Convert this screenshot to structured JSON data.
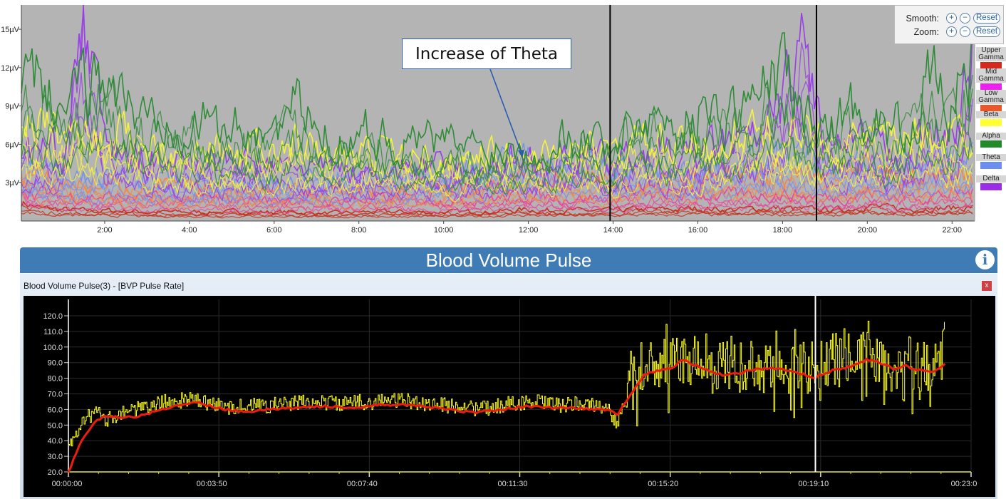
{
  "eeg_controls": {
    "smooth_label": "Smooth:",
    "zoom_label": "Zoom:",
    "plus": "+",
    "minus": "−",
    "reset": "Reset"
  },
  "annotation": {
    "text": "Increase of Theta"
  },
  "bvp_panel": {
    "header": "Blood Volume Pulse",
    "window_title": "Blood Volume Pulse(3) - [BVP Pulse Rate]",
    "close_label": "x",
    "info_icon": "info-icon"
  },
  "chart_data": [
    {
      "type": "line",
      "title": "",
      "background": "#b4b4b4",
      "y_ticks": [
        "3µV",
        "6µV",
        "9µV",
        "12µV",
        "15µV"
      ],
      "y_tick_values": [
        3,
        6,
        9,
        12,
        15
      ],
      "ylim": [
        0,
        16.9
      ],
      "x_ticks": [
        "2:00",
        "4:00",
        "6:00",
        "8:00",
        "10:00",
        "12:00",
        "14:00",
        "16:00",
        "18:00",
        "20:00",
        "22:00"
      ],
      "x_tick_values": [
        2,
        4,
        6,
        8,
        10,
        12,
        14,
        16,
        18,
        20,
        22
      ],
      "xlim": [
        0,
        22.5
      ],
      "x_unit": "minutes",
      "markers_min": [
        13.93,
        18.8
      ],
      "x": [
        0,
        0.5,
        1,
        1.5,
        2,
        2.5,
        3,
        3.5,
        4,
        4.5,
        5,
        5.5,
        6,
        6.5,
        7,
        7.5,
        8,
        8.5,
        9,
        9.5,
        10,
        10.5,
        11,
        11.5,
        12,
        12.5,
        13,
        13.5,
        14,
        14.5,
        15,
        15.5,
        16,
        16.5,
        17,
        17.5,
        18,
        18.5,
        19,
        19.5,
        20,
        20.5,
        21,
        21.5,
        22,
        22.5
      ],
      "legend": [
        {
          "name": "Upper Gamma",
          "color": "#d42a1e",
          "line": "#c8301e"
        },
        {
          "name": "Mid Gamma",
          "color": "#ee20ee",
          "line": "#e8489a"
        },
        {
          "name": "Low Gamma",
          "color": "#e8582a",
          "line": "#f0884a"
        },
        {
          "name": "Beta",
          "color": "#ffff33",
          "line": "#f4f43a"
        },
        {
          "name": "Alpha",
          "color": "#238a2a",
          "line": "#2e8b36"
        },
        {
          "name": "Theta",
          "color": "#6b8ef0",
          "line": "#7890ec"
        },
        {
          "name": "Delta",
          "color": "#9a2ee8",
          "line": "#9a3ee6"
        }
      ],
      "series": [
        {
          "name": "Upper Gamma",
          "values": [
            1.5,
            1,
            0.9,
            0.8,
            0.8,
            0.8,
            0.7,
            0.7,
            0.7,
            0.7,
            0.7,
            0.7,
            0.7,
            0.7,
            0.6,
            0.6,
            0.7,
            0.7,
            0.7,
            0.7,
            0.7,
            0.7,
            0.7,
            0.8,
            0.9,
            0.8,
            0.8,
            0.8,
            0.8,
            0.9,
            0.9,
            0.9,
            1,
            0.9,
            0.9,
            1,
            1,
            0.9,
            0.9,
            0.9,
            1.2,
            1,
            0.9,
            1,
            1,
            1.1
          ]
        },
        {
          "name": "Mid Gamma",
          "values": [
            2.8,
            2.2,
            2,
            1.9,
            1.9,
            1.8,
            1.8,
            1.7,
            1.7,
            1.7,
            1.7,
            1.7,
            1.6,
            1.7,
            1.6,
            1.6,
            1.7,
            1.7,
            1.7,
            1.7,
            1.7,
            1.7,
            1.8,
            1.8,
            2,
            1.9,
            1.8,
            1.8,
            1.8,
            1.9,
            2,
            2,
            2.1,
            2,
            2,
            2.1,
            2.1,
            2,
            1.9,
            1.9,
            2.3,
            2,
            1.9,
            2,
            2.1,
            2.2
          ]
        },
        {
          "name": "Low Gamma",
          "values": [
            4,
            3.2,
            3,
            2.8,
            2.8,
            2.7,
            2.6,
            2.6,
            2.5,
            2.5,
            2.5,
            2.5,
            2.4,
            2.5,
            2.4,
            2.4,
            2.5,
            2.5,
            2.5,
            2.6,
            2.6,
            2.7,
            2.8,
            3,
            3.5,
            3.2,
            3.2,
            3,
            3,
            3.2,
            3.5,
            3.5,
            3.8,
            3.5,
            3.5,
            3.8,
            3.6,
            3.5,
            3.3,
            3.2,
            3.8,
            3.5,
            3.2,
            3.5,
            3.6,
            3.8
          ]
        },
        {
          "name": "Theta",
          "values": [
            4,
            3.8,
            3.6,
            3.5,
            3.5,
            3.4,
            3.3,
            3.3,
            3.2,
            3.2,
            3.1,
            3.2,
            3.1,
            3.2,
            3.1,
            3.2,
            3.3,
            3.4,
            3.5,
            3.6,
            3.8,
            4,
            4.2,
            4.5,
            5,
            4.8,
            4.5,
            4.2,
            4,
            4,
            4.2,
            4,
            4.2,
            4.5,
            4.5,
            4.8,
            5,
            5,
            4.5,
            4.2,
            4.2,
            4.5,
            4.5,
            5,
            4.8,
            5
          ]
        },
        {
          "name": "Delta",
          "values": [
            5,
            6,
            5,
            16,
            6,
            5,
            5,
            4.5,
            4.5,
            5,
            4.5,
            4.5,
            4,
            4.5,
            4,
            4,
            4,
            4,
            4,
            4.5,
            4,
            4,
            4,
            4.5,
            5,
            4.5,
            5,
            5,
            4.5,
            5,
            5.5,
            5,
            5,
            6,
            6,
            6.5,
            9,
            14,
            6,
            5.5,
            6,
            5,
            6,
            7,
            6,
            14
          ]
        },
        {
          "name": "Beta",
          "values": [
            8,
            7.5,
            7,
            7,
            6.5,
            6.5,
            6,
            6,
            5.5,
            5.5,
            5,
            5.5,
            5,
            6,
            5,
            5,
            5,
            5.5,
            5,
            5,
            4.5,
            5,
            5,
            5,
            5.5,
            5,
            6,
            5.5,
            5,
            6,
            6,
            5.5,
            6,
            6,
            6.5,
            7,
            7,
            6.5,
            6,
            6,
            6.5,
            6,
            6.5,
            7,
            6.5,
            7
          ]
        },
        {
          "name": "Alpha",
          "values": [
            10,
            11,
            9,
            10,
            12,
            9,
            8,
            9,
            8,
            7.5,
            7,
            8,
            7,
            9,
            7,
            6.5,
            7,
            7,
            6,
            6.5,
            6,
            6,
            5.5,
            6,
            5.5,
            6,
            7,
            6.5,
            6,
            8,
            8.5,
            7,
            9,
            8,
            9,
            10,
            12,
            8,
            7,
            8.5,
            9,
            7,
            8,
            11,
            9,
            13
          ]
        }
      ]
    },
    {
      "type": "line",
      "title": "Blood Volume Pulse(3) - [BVP Pulse Rate]",
      "background": "#000000",
      "ylim": [
        20,
        120
      ],
      "y_ticks": [
        "20.0",
        "30.0",
        "40.0",
        "50.0",
        "60.0",
        "70.0",
        "80.0",
        "90.0",
        "100.0",
        "110.0",
        "120.0"
      ],
      "y_tick_values": [
        20,
        30,
        40,
        50,
        60,
        70,
        80,
        90,
        100,
        110,
        120
      ],
      "x_ticks": [
        "00:00:00",
        "00:03:50",
        "00:07:40",
        "00:11:30",
        "00:15:20",
        "00:19:10",
        "00:23:0"
      ],
      "x_tick_values_s": [
        0,
        230,
        460,
        690,
        920,
        1150,
        1380
      ],
      "xlim_s": [
        0,
        1380
      ],
      "cursor_s": 1142,
      "t": [
        0,
        20,
        40,
        60,
        80,
        100,
        120,
        140,
        160,
        180,
        200,
        220,
        240,
        260,
        280,
        300,
        320,
        340,
        360,
        380,
        400,
        420,
        440,
        460,
        480,
        500,
        520,
        540,
        560,
        580,
        600,
        620,
        640,
        660,
        680,
        700,
        720,
        740,
        760,
        780,
        800,
        820,
        840,
        860,
        880,
        900,
        920,
        940,
        960,
        980,
        1000,
        1020,
        1040,
        1060,
        1080,
        1100,
        1120,
        1140,
        1160,
        1180,
        1200,
        1220,
        1240,
        1260,
        1280,
        1300,
        1320,
        1340
      ],
      "series": [
        {
          "color": "#ffff22",
          "values": [
            65,
            66,
            63,
            40,
            58,
            62,
            60,
            66,
            62,
            64,
            60,
            58,
            57,
            60,
            62,
            59,
            63,
            60,
            64,
            61,
            62,
            60,
            65,
            62,
            63,
            64,
            62,
            60,
            61,
            59,
            62,
            58,
            56,
            60,
            63,
            61,
            62,
            60,
            58,
            62,
            60,
            60,
            30,
            105,
            95,
            85,
            100,
            80,
            95,
            75,
            100,
            82,
            90,
            70,
            95,
            88,
            75,
            100,
            85,
            92,
            78,
            98,
            85,
            75,
            95,
            80,
            90,
            110
          ]
        },
        {
          "color": "#ee1c10",
          "values": [
            20,
            40,
            52,
            56,
            55,
            55,
            57,
            60,
            62,
            64,
            64,
            62,
            60,
            59,
            59,
            60,
            60,
            61,
            62,
            62,
            62,
            61,
            61,
            62,
            63,
            63,
            63,
            62,
            61,
            60,
            59,
            58,
            59,
            60,
            61,
            62,
            62,
            61,
            61,
            61,
            60,
            60,
            57,
            70,
            82,
            85,
            86,
            92,
            88,
            85,
            82,
            83,
            85,
            86,
            86,
            85,
            83,
            80,
            84,
            86,
            88,
            92,
            90,
            86,
            88,
            85,
            84,
            89
          ]
        }
      ]
    }
  ]
}
